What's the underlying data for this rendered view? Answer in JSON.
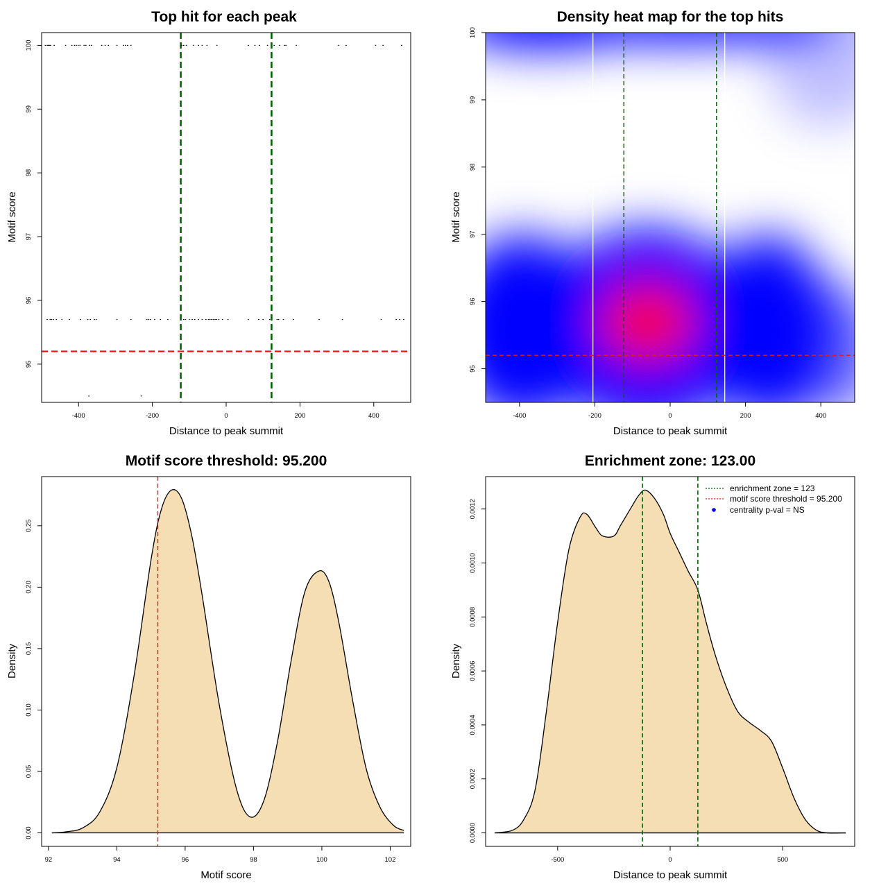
{
  "chart_data": [
    {
      "type": "scatter",
      "title": "Top hit for each peak",
      "xlabel": "Distance to peak summit",
      "ylabel": "Motif score",
      "xlim": [
        -500,
        500
      ],
      "ylim": [
        94.4,
        100.2
      ],
      "xticks": [
        -400,
        -200,
        0,
        200,
        400
      ],
      "yticks": [
        95,
        96,
        97,
        98,
        99,
        100
      ],
      "score_threshold": 95.2,
      "enrichment_zone": [
        -123,
        123
      ],
      "points_y100": [
        -490,
        -485,
        -482,
        -479,
        -476,
        -466,
        -435,
        -418,
        -411,
        -406,
        -401,
        -396,
        -385,
        -380,
        -370,
        -365,
        -337,
        -328,
        -319,
        -296,
        -278,
        -273,
        -267,
        -258,
        -120,
        -115,
        -108,
        -88,
        -75,
        -65,
        -52,
        -25,
        60,
        78,
        90,
        112,
        130,
        145,
        158,
        162,
        190,
        305,
        325,
        405,
        425,
        475
      ],
      "points_y957": [
        -485,
        -477,
        -473,
        -468,
        -460,
        -445,
        -425,
        -395,
        -375,
        -368,
        -357,
        -352,
        -296,
        -258,
        -215,
        -210,
        -205,
        -194,
        -178,
        -158,
        -115,
        -110,
        -100,
        -92,
        -85,
        -75,
        -65,
        -55,
        -48,
        -44,
        -40,
        -35,
        -30,
        -26,
        -20,
        -10,
        5,
        60,
        88,
        100,
        118,
        138,
        142,
        155,
        182,
        252,
        315,
        420,
        461,
        470,
        481
      ],
      "points_y945": [
        -372,
        -230
      ]
    },
    {
      "type": "heatmap",
      "title": "Density heat map for the top hits",
      "xlabel": "Distance to peak summit",
      "ylabel": "Motif score",
      "xlim": [
        -490,
        490
      ],
      "ylim": [
        94.5,
        100
      ],
      "xticks": [
        -400,
        -200,
        0,
        200,
        400
      ],
      "yticks": [
        95,
        96,
        97,
        98,
        99,
        100
      ],
      "score_threshold": 95.2,
      "enrichment_zone": [
        -123,
        123
      ],
      "white_lines": [
        -205,
        145
      ],
      "colors": {
        "low": "#ffffff",
        "mid": "#0000ff",
        "high": "#ff0000"
      }
    },
    {
      "type": "area",
      "title": "Motif score threshold: 95.200",
      "xlabel": "Motif score",
      "ylabel": "Density",
      "xlim": [
        91.8,
        102.6
      ],
      "ylim": [
        -0.011,
        0.29
      ],
      "xticks": [
        92,
        94,
        96,
        98,
        100,
        102
      ],
      "yticks": [
        0.0,
        0.05,
        0.1,
        0.15,
        0.2,
        0.25
      ],
      "ytick_labels": [
        "0.00",
        "0.05",
        "0.10",
        "0.15",
        "0.20",
        "0.25"
      ],
      "threshold": 95.2,
      "x": [
        92.1,
        92.5,
        93.0,
        93.5,
        94.0,
        94.5,
        95.0,
        95.3,
        95.6,
        95.9,
        96.2,
        96.5,
        97.0,
        97.5,
        97.9,
        98.3,
        98.7,
        99.1,
        99.5,
        99.9,
        100.2,
        100.5,
        100.9,
        101.3,
        101.7,
        102.1,
        102.4
      ],
      "y": [
        0.0,
        0.0008,
        0.004,
        0.017,
        0.053,
        0.127,
        0.222,
        0.263,
        0.279,
        0.272,
        0.241,
        0.193,
        0.104,
        0.036,
        0.013,
        0.026,
        0.074,
        0.14,
        0.196,
        0.213,
        0.205,
        0.171,
        0.108,
        0.052,
        0.021,
        0.006,
        0.002
      ]
    },
    {
      "type": "area",
      "title": "Enrichment zone: 123.00",
      "xlabel": "Distance to peak summit",
      "ylabel": "Density",
      "xlim": [
        -820,
        820
      ],
      "ylim": [
        -5e-05,
        0.00132
      ],
      "xticks": [
        -500,
        0,
        500
      ],
      "yticks": [
        0.0,
        0.0002,
        0.0004,
        0.0006,
        0.0008,
        0.001,
        0.0012
      ],
      "ytick_labels": [
        "0.0000",
        "0.0002",
        "0.0004",
        "0.0006",
        "0.0008",
        "0.0010",
        "0.0012"
      ],
      "enrichment_zone": [
        -123,
        123
      ],
      "x": [
        -780,
        -700,
        -650,
        -600,
        -550,
        -500,
        -450,
        -400,
        -370,
        -330,
        -300,
        -250,
        -220,
        -170,
        -140,
        -110,
        -70,
        -30,
        0,
        40,
        80,
        123,
        160,
        200,
        250,
        300,
        350,
        400,
        450,
        500,
        550,
        600,
        650,
        700,
        780
      ],
      "y": [
        0.0,
        1e-05,
        5e-05,
        0.00016,
        0.00045,
        0.00078,
        0.00105,
        0.00117,
        0.00118,
        0.00113,
        0.0011,
        0.0011,
        0.00114,
        0.00121,
        0.00125,
        0.00127,
        0.00124,
        0.00118,
        0.00111,
        0.00104,
        0.00097,
        0.0009,
        0.00078,
        0.00066,
        0.00054,
        0.00045,
        0.00041,
        0.00038,
        0.00034,
        0.00024,
        0.00013,
        5e-05,
        1e-05,
        0.0,
        0.0
      ],
      "legend": {
        "placement": "top-right",
        "entries": [
          "enrichment zone = 123",
          "motif score threshold = 95.200",
          "centrality p-val = NS"
        ]
      }
    }
  ],
  "colors": {
    "fill": "#f5deb3",
    "threshold": "#e31a1c",
    "zone": "#006400",
    "legend_dot": "#0000ff"
  }
}
